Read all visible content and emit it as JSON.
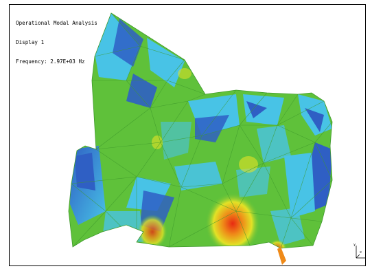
{
  "viewport": {
    "info": {
      "line1": "Operational Modal Analysis",
      "line2": "Display 1",
      "frequency_label": "Frequency:",
      "frequency_value": "2.97E+03",
      "frequency_unit": "Hz"
    },
    "colormap": {
      "deep_blue": "#2f5fc4",
      "cyan": "#48c3e6",
      "green": "#5fc13a",
      "yellow": "#e2e226",
      "orange": "#ef8a18",
      "red": "#e82a12",
      "mesh_line": "#3f9a2c"
    },
    "triad": {
      "axis_x": "x",
      "axis_y": "y",
      "axis_z": "z"
    }
  }
}
